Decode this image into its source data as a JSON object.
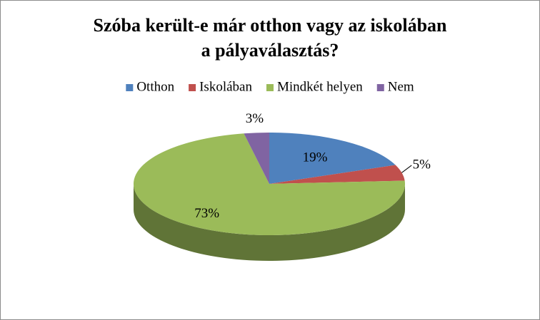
{
  "chart_data": {
    "type": "pie",
    "title": [
      "Szóba került-e már otthon vagy az iskolában",
      "a pályaválasztás?"
    ],
    "categories": [
      "Otthon",
      "Iskolában",
      "Mindkét helyen",
      "Nem"
    ],
    "values": [
      19,
      5,
      73,
      3
    ],
    "value_labels": [
      "19%",
      "5%",
      "73%",
      "3%"
    ],
    "colors": [
      "#4f81bd",
      "#c0504d",
      "#9bbb59",
      "#8064a2"
    ],
    "legend": "top"
  }
}
